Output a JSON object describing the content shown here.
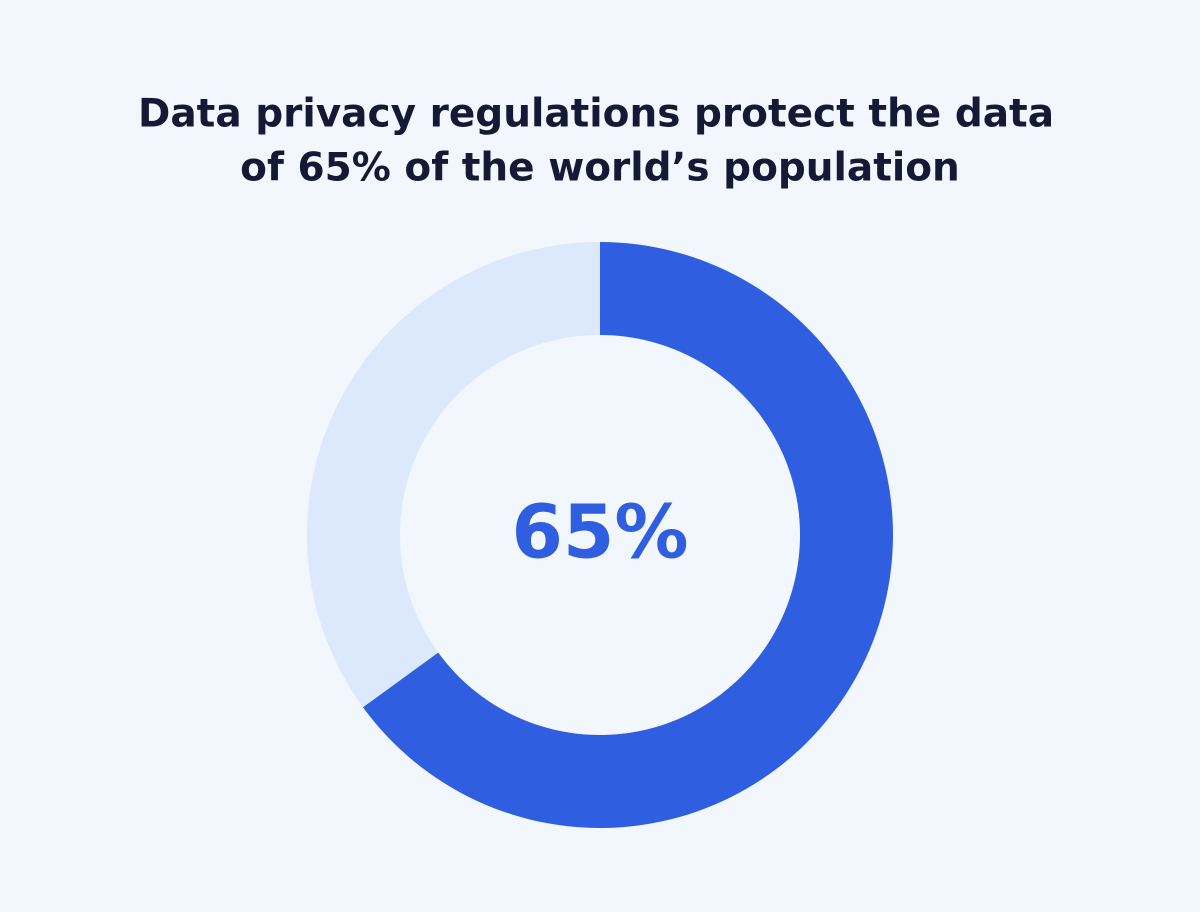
{
  "chart_data": {
    "type": "donut",
    "title": [
      "Data privacy regulations protect the data",
      "of 65% of the world’s population"
    ],
    "values": [
      65,
      35
    ],
    "value_labels": [
      "65%",
      null
    ],
    "colors": [
      "#2f5fe0",
      "#dce8fb"
    ]
  }
}
